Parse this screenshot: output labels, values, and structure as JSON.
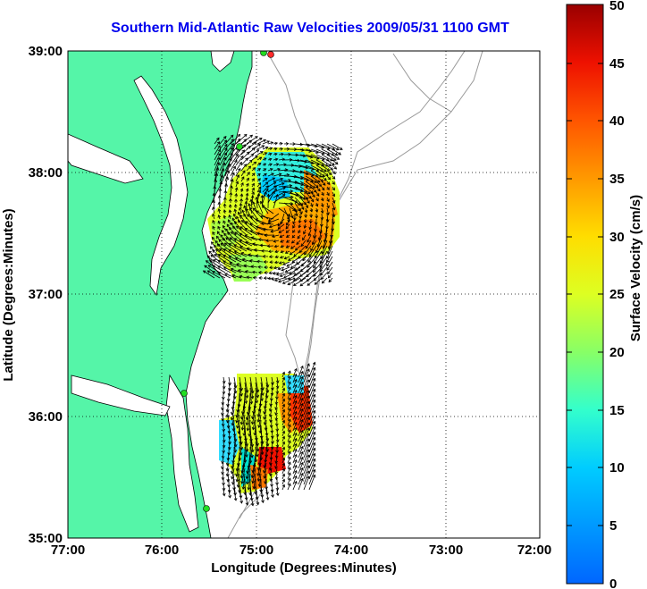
{
  "title": "Southern Mid-Atlantic Raw Velocities 2009/05/31 1100 GMT",
  "xaxis": {
    "label": "Longitude (Degrees:Minutes)",
    "ticks": [
      "77:00",
      "76:00",
      "75:00",
      "74:00",
      "73:00",
      "72:00"
    ]
  },
  "yaxis": {
    "label": "Latitude (Degrees:Minutes)",
    "ticks": [
      "39:00",
      "38:00",
      "37:00",
      "36:00",
      "35:00"
    ]
  },
  "colorbar": {
    "label": "Surface Velocity (cm/s)",
    "ticks": [
      "0",
      "5",
      "10",
      "15",
      "20",
      "25",
      "30",
      "35",
      "40",
      "45",
      "50"
    ],
    "range": [
      0,
      50
    ]
  },
  "colors": {
    "land": "#55f5a8",
    "title": "#0000ee",
    "station": "#22dd22",
    "station_alt": "#ff2a2a"
  },
  "chart_data": {
    "type": "map",
    "region": "Southern Mid-Atlantic",
    "lon_range": [
      -77,
      -72
    ],
    "lat_range": [
      35,
      39
    ],
    "grid": true
  }
}
